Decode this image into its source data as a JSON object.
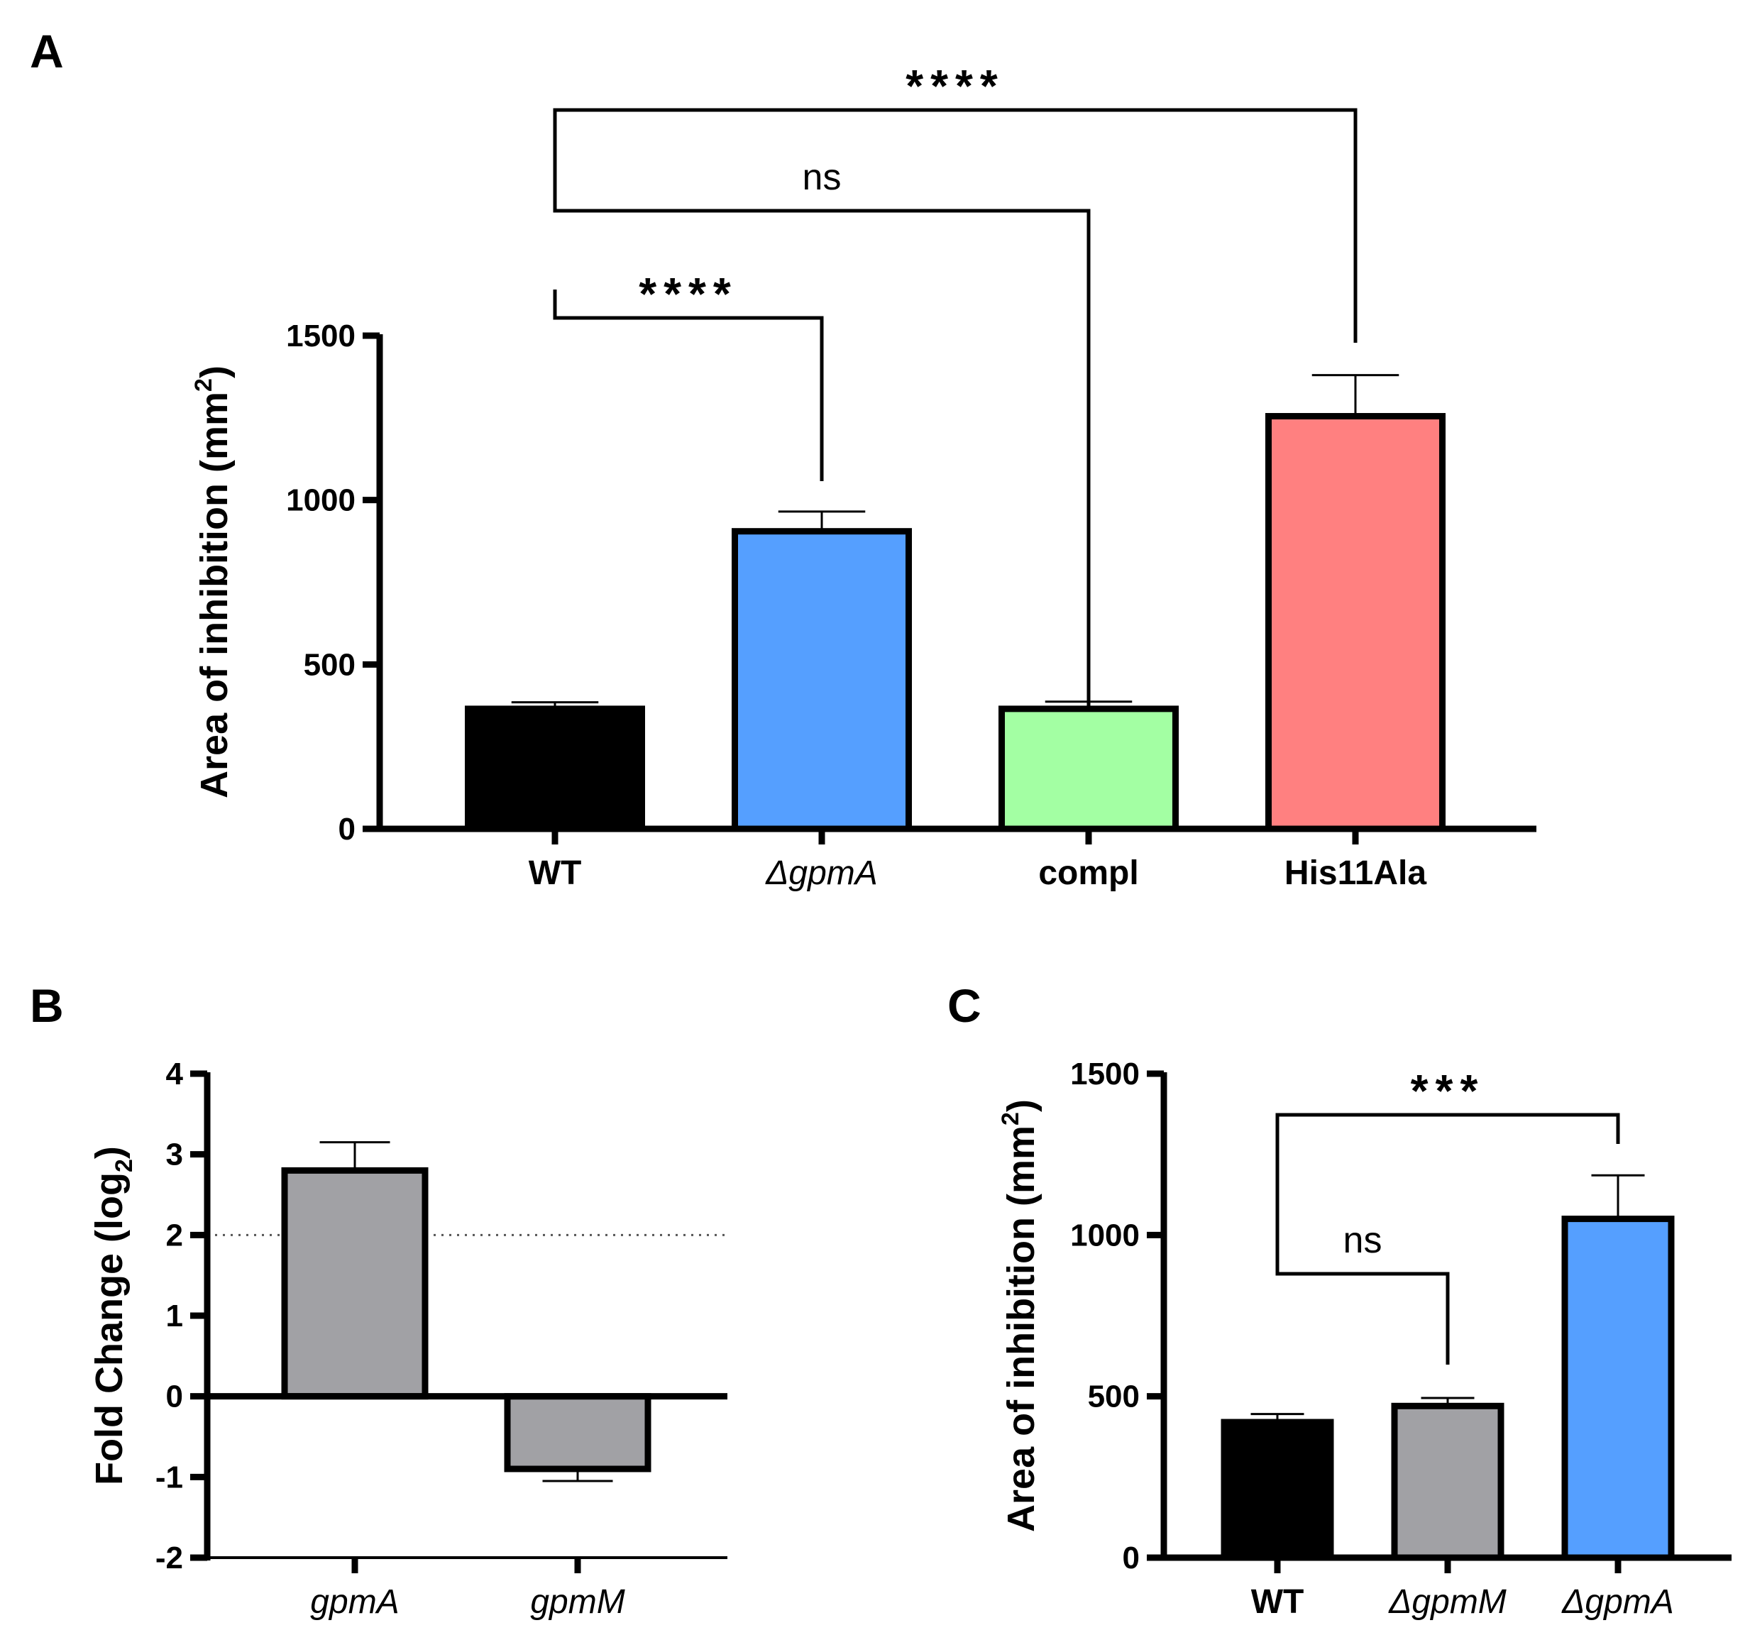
{
  "chart_data": [
    {
      "type": "bar",
      "panel": "A",
      "categories": [
        "WT",
        "ΔgpmA",
        "compl",
        "His11Ala"
      ],
      "values": [
        365,
        905,
        365,
        1255
      ],
      "errors": [
        20,
        60,
        22,
        125
      ],
      "colors": [
        "#000000",
        "#559FFF",
        "#A3FFA3",
        "#FF8080"
      ],
      "ylabel": "Area of inhibition (mm",
      "ylabel_sup": "2",
      "ylabel_end": ")",
      "yticks": [
        0,
        500,
        1000,
        1500
      ],
      "ylim": [
        0,
        1500
      ],
      "significance": [
        {
          "from": 0,
          "to": 1,
          "label": "****"
        },
        {
          "from": 0,
          "to": 2,
          "label": "ns"
        },
        {
          "from": 0,
          "to": 3,
          "label": "****"
        }
      ]
    },
    {
      "type": "bar",
      "panel": "B",
      "categories": [
        "gpmA",
        "gpmM"
      ],
      "values": [
        2.8,
        -0.9
      ],
      "errors": [
        0.35,
        0.15
      ],
      "colors": [
        "#A1A1A5",
        "#A1A1A5"
      ],
      "ylabel": "Fold Change (log",
      "ylabel_sub": "2",
      "ylabel_end": ")",
      "yticks": [
        -2,
        -1,
        0,
        1,
        2,
        3,
        4
      ],
      "ylim": [
        -2,
        4
      ],
      "reference_line": 2
    },
    {
      "type": "bar",
      "panel": "C",
      "categories": [
        "WT",
        "ΔgpmM",
        "ΔgpmA"
      ],
      "values": [
        420,
        470,
        1050
      ],
      "errors": [
        25,
        25,
        135
      ],
      "colors": [
        "#000000",
        "#A1A1A5",
        "#559FFF"
      ],
      "ylabel": "Area of inhibition (mm",
      "ylabel_sup": "2",
      "ylabel_end": ")",
      "yticks": [
        0,
        500,
        1000,
        1500
      ],
      "ylim": [
        0,
        1500
      ],
      "significance": [
        {
          "from": 0,
          "to": 1,
          "label": "ns"
        },
        {
          "from": 0,
          "to": 2,
          "label": "***"
        }
      ]
    }
  ]
}
